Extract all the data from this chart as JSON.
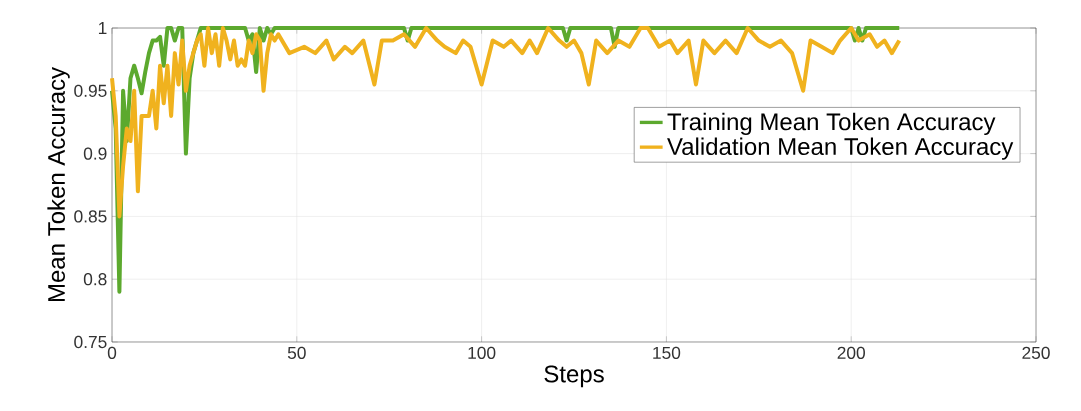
{
  "chart_data": {
    "type": "line",
    "xlabel": "Steps",
    "ylabel": "Mean Token Accuracy",
    "xlim": [
      0,
      250
    ],
    "ylim": [
      0.75,
      1
    ],
    "xticks": [
      0,
      50,
      100,
      150,
      200,
      250
    ],
    "yticks": [
      0.75,
      0.8,
      0.85,
      0.9,
      0.95,
      1
    ],
    "grid": true,
    "legend": "right",
    "line_style": "solid",
    "marker": "none",
    "series": [
      {
        "name": "Training Mean Token Accuracy",
        "color": "#5ca92e",
        "x": [
          0,
          1,
          2,
          3,
          4,
          5,
          6,
          7,
          8,
          9,
          10,
          11,
          12,
          13,
          14,
          15,
          16,
          17,
          18,
          19,
          20,
          21,
          22,
          23,
          24,
          30,
          36,
          37,
          38,
          39,
          40,
          41,
          42,
          43,
          44,
          79,
          80,
          81,
          122,
          123,
          124,
          135,
          136,
          137,
          200,
          201,
          202,
          203,
          204,
          205,
          213
        ],
        "values": [
          0.95,
          0.92,
          0.79,
          0.95,
          0.91,
          0.96,
          0.97,
          0.96,
          0.948,
          0.965,
          0.98,
          0.99,
          0.99,
          0.993,
          0.97,
          1.0,
          1.0,
          0.99,
          1.0,
          1.0,
          0.9,
          0.96,
          0.98,
          0.99,
          1.0,
          1.0,
          1.0,
          0.99,
          0.995,
          0.965,
          1.0,
          0.99,
          1.0,
          0.995,
          1.0,
          1.0,
          0.99,
          1.0,
          1.0,
          0.99,
          1.0,
          1.0,
          0.985,
          1.0,
          1.0,
          0.99,
          1.0,
          0.99,
          1.0,
          1.0,
          1.0
        ]
      },
      {
        "name": "Validation Mean Token Accuracy",
        "color": "#f0b21e",
        "x": [
          0,
          1,
          2,
          3,
          4,
          5,
          6,
          7,
          8,
          9,
          10,
          11,
          12,
          13,
          14,
          15,
          16,
          17,
          18,
          19,
          20,
          21,
          22,
          23,
          24,
          25,
          26,
          27,
          28,
          29,
          30,
          31,
          32,
          33,
          34,
          35,
          36,
          37,
          38,
          39,
          40,
          41,
          42,
          43,
          44,
          45,
          48,
          52,
          55,
          58,
          60,
          63,
          65,
          68,
          71,
          73,
          76,
          79,
          82,
          85,
          88,
          90,
          93,
          95,
          97,
          100,
          103,
          106,
          108,
          111,
          113,
          115,
          118,
          121,
          123,
          125,
          127,
          129,
          131,
          134,
          137,
          140,
          143,
          145,
          148,
          151,
          153,
          156,
          158,
          160,
          163,
          166,
          169,
          172,
          175,
          178,
          181,
          184,
          187,
          189,
          192,
          195,
          197,
          200,
          202,
          205,
          207,
          209,
          211,
          213
        ],
        "values": [
          0.96,
          0.93,
          0.85,
          0.89,
          0.92,
          0.91,
          0.95,
          0.87,
          0.93,
          0.93,
          0.93,
          0.95,
          0.92,
          0.97,
          0.94,
          0.97,
          0.93,
          0.98,
          0.955,
          0.99,
          0.95,
          0.97,
          0.98,
          0.99,
          0.995,
          0.97,
          1.0,
          0.98,
          0.995,
          0.97,
          1.0,
          0.99,
          0.975,
          0.99,
          0.97,
          0.975,
          0.97,
          0.99,
          0.98,
          0.995,
          0.99,
          0.95,
          0.98,
          0.995,
          0.99,
          0.995,
          0.98,
          0.985,
          0.98,
          0.99,
          0.975,
          0.985,
          0.98,
          0.99,
          0.955,
          0.99,
          0.99,
          0.995,
          0.985,
          1.0,
          0.99,
          0.985,
          0.98,
          0.99,
          0.985,
          0.955,
          0.99,
          0.985,
          0.99,
          0.98,
          0.99,
          0.98,
          1.0,
          0.99,
          0.985,
          0.99,
          0.98,
          0.955,
          0.99,
          0.98,
          0.99,
          0.985,
          1.0,
          1.0,
          0.985,
          0.99,
          0.98,
          0.99,
          0.955,
          0.99,
          0.98,
          0.99,
          0.98,
          1.0,
          0.99,
          0.985,
          0.99,
          0.98,
          0.95,
          0.99,
          0.985,
          0.98,
          0.99,
          1.0,
          0.99,
          0.995,
          0.985,
          0.99,
          0.98,
          0.99
        ]
      }
    ]
  }
}
